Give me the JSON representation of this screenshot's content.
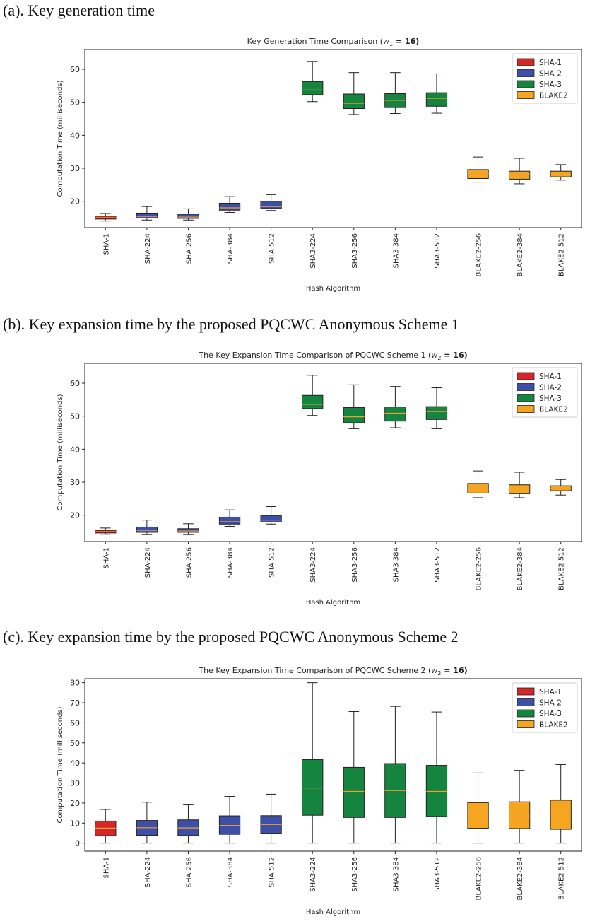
{
  "colors": {
    "SHA-1": "#d62728",
    "SHA-2": "#3e4fa8",
    "SHA-3": "#15843f",
    "BLAKE2": "#f5a51f",
    "median": "#f0a030",
    "whisker": "#222222"
  },
  "panels": [
    {
      "caption": "(a). Key generation time",
      "chart_data": {
        "type": "box",
        "title": "Key Generation Time Comparison (",
        "title_var": "w",
        "title_sub": "1",
        "title_tail": " = 16)",
        "xlabel": "Hash Algorithm",
        "ylabel": "Computation Time (milliseconds)",
        "ylim": [
          12,
          66
        ],
        "yticks": [
          20,
          30,
          40,
          50,
          60
        ],
        "legend": [
          "SHA-1",
          "SHA-2",
          "SHA-3",
          "BLAKE2"
        ],
        "legend_position": "top-right",
        "categories": [
          "SHA-1",
          "SHA-224",
          "SHA-256",
          "SHA-384",
          "SHA 512",
          "SHA3-224",
          "SHA3-256",
          "SHA3 384",
          "SHA3-512",
          "BLAKE2-256",
          "BLAKE2-384",
          "BLAKE2 512"
        ],
        "groups": [
          "SHA-1",
          "SHA-2",
          "SHA-2",
          "SHA-2",
          "SHA-2",
          "SHA-3",
          "SHA-3",
          "SHA-3",
          "SHA-3",
          "BLAKE2",
          "BLAKE2",
          "BLAKE2"
        ],
        "boxes": [
          {
            "min": 14.0,
            "q1": 14.6,
            "median": 15.0,
            "q3": 15.5,
            "max": 16.3
          },
          {
            "min": 14.3,
            "q1": 14.9,
            "median": 15.4,
            "q3": 16.4,
            "max": 18.4
          },
          {
            "min": 14.3,
            "q1": 14.8,
            "median": 15.2,
            "q3": 16.1,
            "max": 17.7
          },
          {
            "min": 16.6,
            "q1": 17.3,
            "median": 18.0,
            "q3": 19.4,
            "max": 21.4
          },
          {
            "min": 17.2,
            "q1": 17.8,
            "median": 18.4,
            "q3": 20.0,
            "max": 22.0
          },
          {
            "min": 50.2,
            "q1": 52.3,
            "median": 53.7,
            "q3": 56.3,
            "max": 62.4
          },
          {
            "min": 46.3,
            "q1": 48.1,
            "median": 49.7,
            "q3": 52.5,
            "max": 59.0
          },
          {
            "min": 46.6,
            "q1": 48.4,
            "median": 50.6,
            "q3": 52.6,
            "max": 59.0
          },
          {
            "min": 46.7,
            "q1": 48.8,
            "median": 51.2,
            "q3": 52.9,
            "max": 58.6
          },
          {
            "min": 25.8,
            "q1": 26.9,
            "median": 28.4,
            "q3": 29.6,
            "max": 33.4
          },
          {
            "min": 25.3,
            "q1": 26.7,
            "median": 28.2,
            "q3": 29.1,
            "max": 33.0
          },
          {
            "min": 26.4,
            "q1": 27.4,
            "median": 28.0,
            "q3": 29.1,
            "max": 31.1
          }
        ]
      }
    },
    {
      "caption": "(b). Key expansion time by the proposed PQCWC Anonymous Scheme 1",
      "chart_data": {
        "type": "box",
        "title": "The Key Expansion Time Comparison of PQCWC Scheme 1 (",
        "title_var": "w",
        "title_sub": "2",
        "title_tail": " = 16)",
        "xlabel": "Hash Algorithm",
        "ylabel": "Computation Time (milliseconds)",
        "ylim": [
          12,
          66
        ],
        "yticks": [
          20,
          30,
          40,
          50,
          60
        ],
        "legend": [
          "SHA-1",
          "SHA-2",
          "SHA-3",
          "BLAKE2"
        ],
        "legend_position": "top-right",
        "categories": [
          "SHA-1",
          "SHA-224",
          "SHA-256",
          "SHA-384",
          "SHA 512",
          "SHA3-224",
          "SHA3-256",
          "SHA3 384",
          "SHA3-512",
          "BLAKE2-256",
          "BLAKE2-384",
          "BLAKE2 512"
        ],
        "groups": [
          "SHA-1",
          "SHA-2",
          "SHA-2",
          "SHA-2",
          "SHA-2",
          "SHA-3",
          "SHA-3",
          "SHA-3",
          "SHA-3",
          "BLAKE2",
          "BLAKE2",
          "BLAKE2"
        ],
        "boxes": [
          {
            "min": 14.2,
            "q1": 14.6,
            "median": 15.0,
            "q3": 15.4,
            "max": 16.1
          },
          {
            "min": 14.1,
            "q1": 14.8,
            "median": 15.4,
            "q3": 16.4,
            "max": 18.5
          },
          {
            "min": 14.1,
            "q1": 14.8,
            "median": 15.2,
            "q3": 15.9,
            "max": 17.4
          },
          {
            "min": 16.6,
            "q1": 17.3,
            "median": 18.0,
            "q3": 19.4,
            "max": 21.6
          },
          {
            "min": 17.3,
            "q1": 17.9,
            "median": 18.5,
            "q3": 19.9,
            "max": 22.6
          },
          {
            "min": 50.2,
            "q1": 52.3,
            "median": 53.6,
            "q3": 56.3,
            "max": 62.4
          },
          {
            "min": 46.2,
            "q1": 48.0,
            "median": 49.8,
            "q3": 52.6,
            "max": 59.5
          },
          {
            "min": 46.5,
            "q1": 48.5,
            "median": 50.9,
            "q3": 52.8,
            "max": 59.0
          },
          {
            "min": 46.2,
            "q1": 49.0,
            "median": 51.4,
            "q3": 52.9,
            "max": 58.6
          },
          {
            "min": 25.3,
            "q1": 26.7,
            "median": 28.0,
            "q3": 29.6,
            "max": 33.4
          },
          {
            "min": 25.3,
            "q1": 26.5,
            "median": 28.0,
            "q3": 29.2,
            "max": 33.0
          },
          {
            "min": 26.1,
            "q1": 27.4,
            "median": 28.1,
            "q3": 28.9,
            "max": 30.8
          }
        ]
      }
    },
    {
      "caption": "(c). Key expansion time by the proposed PQCWC Anonymous Scheme 2",
      "chart_data": {
        "type": "box",
        "title": "The Key Expansion Time Comparison of PQCWC Scheme 2 (",
        "title_var": "w",
        "title_sub": "2",
        "title_tail": " = 16)",
        "xlabel": "Hash Algorithm",
        "ylabel": "Computation Time (milliseconds)",
        "ylim": [
          -4,
          82
        ],
        "yticks": [
          0,
          10,
          20,
          30,
          40,
          50,
          60,
          70,
          80
        ],
        "legend": [
          "SHA-1",
          "SHA-2",
          "SHA-3",
          "BLAKE2"
        ],
        "legend_position": "top-right",
        "categories": [
          "SHA-1",
          "SHA-224",
          "SHA-256",
          "SHA-384",
          "SHA 512",
          "SHA3-224",
          "SHA3-256",
          "SHA3 384",
          "SHA3-512",
          "BLAKE2-256",
          "BLAKE2-384",
          "BLAKE2 512"
        ],
        "groups": [
          "SHA-1",
          "SHA-2",
          "SHA-2",
          "SHA-2",
          "SHA-2",
          "SHA-3",
          "SHA-3",
          "SHA-3",
          "SHA-3",
          "BLAKE2",
          "BLAKE2",
          "BLAKE2"
        ],
        "boxes": [
          {
            "min": 0.0,
            "q1": 3.7,
            "median": 7.5,
            "q3": 11.0,
            "max": 16.8
          },
          {
            "min": 0.0,
            "q1": 3.9,
            "median": 7.7,
            "q3": 11.3,
            "max": 20.4
          },
          {
            "min": 0.0,
            "q1": 3.8,
            "median": 7.6,
            "q3": 11.6,
            "max": 19.4
          },
          {
            "min": 0.0,
            "q1": 4.4,
            "median": 8.8,
            "q3": 13.6,
            "max": 23.3
          },
          {
            "min": 0.0,
            "q1": 4.9,
            "median": 9.3,
            "q3": 13.7,
            "max": 24.4
          },
          {
            "min": 0.0,
            "q1": 13.9,
            "median": 27.5,
            "q3": 41.7,
            "max": 80.0
          },
          {
            "min": 0.0,
            "q1": 12.8,
            "median": 25.8,
            "q3": 37.8,
            "max": 65.6
          },
          {
            "min": 0.0,
            "q1": 12.8,
            "median": 26.2,
            "q3": 39.7,
            "max": 68.2
          },
          {
            "min": 0.0,
            "q1": 13.3,
            "median": 25.8,
            "q3": 38.8,
            "max": 65.4
          },
          {
            "min": 0.0,
            "q1": 7.4,
            "median": 14.6,
            "q3": 20.2,
            "max": 35.0
          },
          {
            "min": 0.0,
            "q1": 7.3,
            "median": 13.6,
            "q3": 20.6,
            "max": 36.3
          },
          {
            "min": 0.0,
            "q1": 6.9,
            "median": 14.6,
            "q3": 21.4,
            "max": 39.2
          }
        ]
      }
    }
  ]
}
